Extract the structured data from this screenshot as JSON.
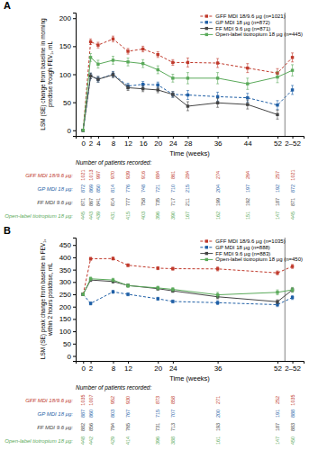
{
  "chart_data": [
    {
      "type": "line",
      "title": "A",
      "x_label": "Time (weeks)",
      "y_label": "LSM (SE) change from baseline in morning\npredose trough FEV₁, mL",
      "xlim": [
        -2,
        59
      ],
      "xticks": [
        0,
        2,
        4,
        8,
        12,
        16,
        20,
        24,
        28,
        36,
        44,
        52,
        {
          "value": 56,
          "label": "2–52"
        }
      ],
      "ylim": [
        -10,
        210
      ],
      "yticks": [
        0,
        50,
        100,
        150,
        200
      ],
      "grid": false,
      "legend": "upper right",
      "series": [
        {
          "name": "GFF MDI 18/9.6 μg (n=1021)",
          "color": "#c0392b",
          "line_style": "dashed",
          "marker": "square",
          "x": [
            0,
            2,
            4,
            8,
            12,
            16,
            20,
            24,
            28,
            36,
            44,
            52,
            56
          ],
          "values": [
            0,
            158,
            152,
            163,
            141,
            145,
            135,
            121,
            121,
            120,
            111,
            102,
            130
          ],
          "errors": [
            0,
            5,
            5,
            5,
            5,
            5,
            5,
            5,
            8,
            8,
            8,
            8,
            8
          ]
        },
        {
          "name": "GP MDI 18 μg (n=872)",
          "color": "#1f5fa6",
          "line_style": "dashed",
          "marker": "square",
          "x": [
            0,
            2,
            4,
            8,
            12,
            16,
            20,
            24,
            28,
            36,
            44,
            52,
            56
          ],
          "values": [
            0,
            97,
            91,
            100,
            79,
            82,
            81,
            64,
            63,
            60,
            58,
            45,
            72
          ],
          "errors": [
            0,
            5,
            5,
            5,
            5,
            5,
            5,
            5,
            8,
            8,
            8,
            8,
            8
          ]
        },
        {
          "name": "FF MDI 9.6 μg (n=871)",
          "color": "#444444",
          "line_style": "solid",
          "marker": "square",
          "x": [
            0,
            2,
            4,
            8,
            12,
            16,
            20,
            24,
            28,
            36,
            44,
            52
          ],
          "values": [
            0,
            97,
            91,
            99,
            76,
            74,
            72,
            64,
            43,
            49,
            46,
            28
          ],
          "errors": [
            0,
            5,
            5,
            5,
            5,
            5,
            5,
            5,
            8,
            8,
            8,
            8
          ]
        },
        {
          "name": "Open-label tiotropium 18 μg (n=445)",
          "color": "#5aaa5a",
          "line_style": "solid",
          "marker": "square",
          "x": [
            0,
            2,
            4,
            8,
            12,
            16,
            20,
            24,
            28,
            36,
            44,
            52,
            56
          ],
          "values": [
            0,
            130,
            118,
            125,
            122,
            119,
            108,
            93,
            93,
            93,
            83,
            95,
            107
          ],
          "errors": [
            0,
            7,
            7,
            7,
            7,
            7,
            7,
            7,
            10,
            10,
            10,
            10,
            10
          ]
        }
      ],
      "table": {
        "title": "Number of patients recorded:",
        "x": [
          0,
          2,
          4,
          8,
          12,
          16,
          20,
          24,
          28,
          36,
          44,
          52,
          56
        ],
        "rows": [
          {
            "label": "GFF MDI 18/9.6 μg:",
            "color": "#c0392b",
            "values": [
              1021,
              1013,
              997,
              970,
              939,
              916,
              884,
              861,
              284,
              274,
              264,
              257,
              1021
            ]
          },
          {
            "label": "GP MDI 18 μg:",
            "color": "#1f5fa6",
            "values": [
              872,
              869,
              850,
              814,
              776,
              748,
              721,
              710,
              215,
              204,
              197,
              192,
              872
            ]
          },
          {
            "label": "FF MDI 9.6 μg:",
            "color": "#444444",
            "values": [
              871,
              867,
              841,
              814,
              777,
              758,
              735,
              717,
              211,
              199,
              192,
              187,
              871
            ]
          },
          {
            "label": "Open-label tiotropium 18 μg:",
            "color": "#5aaa5a",
            "values": [
              445,
              443,
              439,
              431,
              415,
              403,
              396,
              390,
              167,
              162,
              151,
              147,
              445
            ]
          }
        ]
      }
    },
    {
      "type": "line",
      "title": "B",
      "x_label": "Time (weeks)",
      "y_label": "LSM (SE) peak change from baseline in FEV₁,\nwithin 2 hours postdose, mL",
      "xlim": [
        -2,
        59
      ],
      "xticks": [
        0,
        2,
        8,
        12,
        20,
        24,
        36,
        52,
        {
          "value": 56,
          "label": "2–52"
        }
      ],
      "ylim": [
        -20,
        480
      ],
      "yticks": [
        0,
        50,
        100,
        150,
        200,
        250,
        300,
        350,
        400,
        450
      ],
      "grid": false,
      "legend": "upper right",
      "series": [
        {
          "name": "GFF MDI 18/9.6 μg (n=1035)",
          "color": "#c0392b",
          "line_style": "dashed",
          "marker": "square",
          "x": [
            0,
            2,
            8,
            12,
            20,
            24,
            36,
            52,
            56
          ],
          "values": [
            250,
            394,
            395,
            368,
            356,
            354,
            353,
            337,
            363
          ],
          "errors": [
            5,
            6,
            6,
            6,
            6,
            6,
            8,
            8,
            8
          ]
        },
        {
          "name": "GP MDI 18 μg (n=888)",
          "color": "#1f5fa6",
          "line_style": "dashed",
          "marker": "square",
          "x": [
            0,
            2,
            8,
            12,
            20,
            24,
            36,
            52,
            56
          ],
          "values": [
            250,
            213,
            260,
            250,
            232,
            221,
            216,
            208,
            237
          ],
          "errors": [
            5,
            6,
            6,
            6,
            6,
            6,
            8,
            8,
            8
          ]
        },
        {
          "name": "FF MDI 9.6 μg (n=883)",
          "color": "#444444",
          "line_style": "solid",
          "marker": "square",
          "x": [
            0,
            2,
            8,
            12,
            20,
            24,
            36,
            52,
            56
          ],
          "values": [
            250,
            308,
            302,
            286,
            273,
            264,
            240,
            220,
            268
          ],
          "errors": [
            5,
            6,
            6,
            6,
            6,
            6,
            8,
            8,
            8
          ]
        },
        {
          "name": "Open-label tiotropium 18 μg (n=450)",
          "color": "#5aaa5a",
          "line_style": "solid",
          "marker": "square",
          "x": [
            0,
            2,
            8,
            12,
            20,
            24,
            36,
            52,
            56
          ],
          "values": [
            250,
            313,
            308,
            285,
            276,
            270,
            248,
            258,
            268
          ],
          "errors": [
            5,
            7,
            7,
            7,
            7,
            7,
            10,
            10,
            10
          ]
        }
      ],
      "table": {
        "title": "Number of patients recorded:",
        "x": [
          0,
          2,
          8,
          12,
          20,
          24,
          36,
          52,
          56
        ],
        "rows": [
          {
            "label": "GFF MDI 18/9.6 μg:",
            "color": "#c0392b",
            "values": [
              1035,
              1007,
              952,
              930,
              873,
              858,
              271,
              252,
              1035
            ]
          },
          {
            "label": "GP MDI 18 μg:",
            "color": "#1f5fa6",
            "values": [
              887,
              860,
              803,
              767,
              715,
              707,
              200,
              191,
              888
            ]
          },
          {
            "label": "FF MDI 9.6 μg:",
            "color": "#444444",
            "values": [
              882,
              856,
              794,
              765,
              731,
              713,
              193,
              187,
              883
            ]
          },
          {
            "label": "Open-label tiotropium 18 μg:",
            "color": "#5aaa5a",
            "values": [
              448,
              442,
              429,
              414,
              396,
              388,
              161,
              147,
              450
            ]
          }
        ]
      }
    }
  ]
}
